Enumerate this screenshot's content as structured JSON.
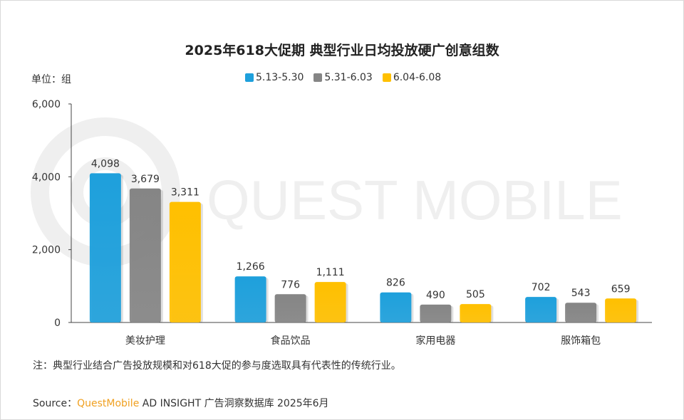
{
  "title": "2025年618大促期 典型行业日均投放硬广创意组数",
  "unit_label": "单位：组",
  "watermark": "QUEST MOBILE",
  "note": "注：典型行业结合广告投放规模和对618大促的参与度选取具有代表性的传统行业。",
  "source": {
    "prefix": "Source：",
    "brand": "QuestMobile",
    "suffix": " AD INSIGHT 广告洞察数据库 2025年6月"
  },
  "colors": {
    "series1": "#1ea0dc",
    "series2": "#858585",
    "series3": "#ffc000",
    "axis": "#444444",
    "watermark": "#efefef"
  },
  "chart_data": {
    "type": "bar",
    "categories": [
      "美妆护理",
      "食品饮品",
      "家用电器",
      "服饰箱包"
    ],
    "series": [
      {
        "name": "5.13-5.30",
        "values": [
          4098,
          1266,
          826,
          702
        ],
        "labels": [
          "4,098",
          "1,266",
          "826",
          "702"
        ]
      },
      {
        "name": "5.31-6.03",
        "values": [
          3679,
          776,
          490,
          543
        ],
        "labels": [
          "3,679",
          "776",
          "490",
          "543"
        ]
      },
      {
        "name": "6.04-6.08",
        "values": [
          3311,
          1111,
          505,
          659
        ],
        "labels": [
          "3,311",
          "1,111",
          "505",
          "659"
        ]
      }
    ],
    "yticks": [
      0,
      2000,
      4000,
      6000
    ],
    "ytick_labels": [
      "0",
      "2,000",
      "4,000",
      "6,000"
    ],
    "ylim": [
      0,
      6000
    ],
    "grid": false,
    "legend_position": "top-center"
  }
}
